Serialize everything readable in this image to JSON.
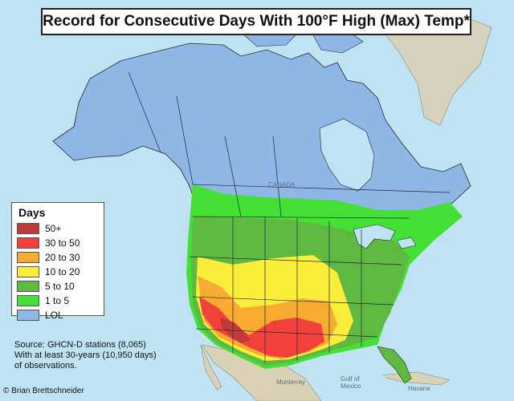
{
  "title": "Record for Consecutive Days With 100°F High (Max) Temp*",
  "legend": {
    "title": "Days",
    "items": [
      {
        "label": "50+",
        "color": "#c0393b"
      },
      {
        "label": "30 to 50",
        "color": "#f2403a"
      },
      {
        "label": "20 to 30",
        "color": "#f7ab30"
      },
      {
        "label": "10 to 20",
        "color": "#fbee3a"
      },
      {
        "label": "5 to 10",
        "color": "#5fb840"
      },
      {
        "label": "1 to 5",
        "color": "#45e035"
      },
      {
        "label": "LOL",
        "color": "#8fb7e6"
      }
    ]
  },
  "source": {
    "line1": "Source: GHCN-D stations (8,065)",
    "line2": "With at least 30-years (10,950 days)",
    "line3": "of observations."
  },
  "credit": "© Brian Brettschneider",
  "map_labels": {
    "canada": "CANADA",
    "gulf": "Gulf of",
    "mexico": "Mexico",
    "havana": "Havana",
    "monterrey": "Monterrey"
  },
  "colors": {
    "ocean": "#bfe3f3",
    "land_none": "#8fb7e6",
    "mexico_land": "#d9d2b6",
    "border": "#1f2a33"
  }
}
